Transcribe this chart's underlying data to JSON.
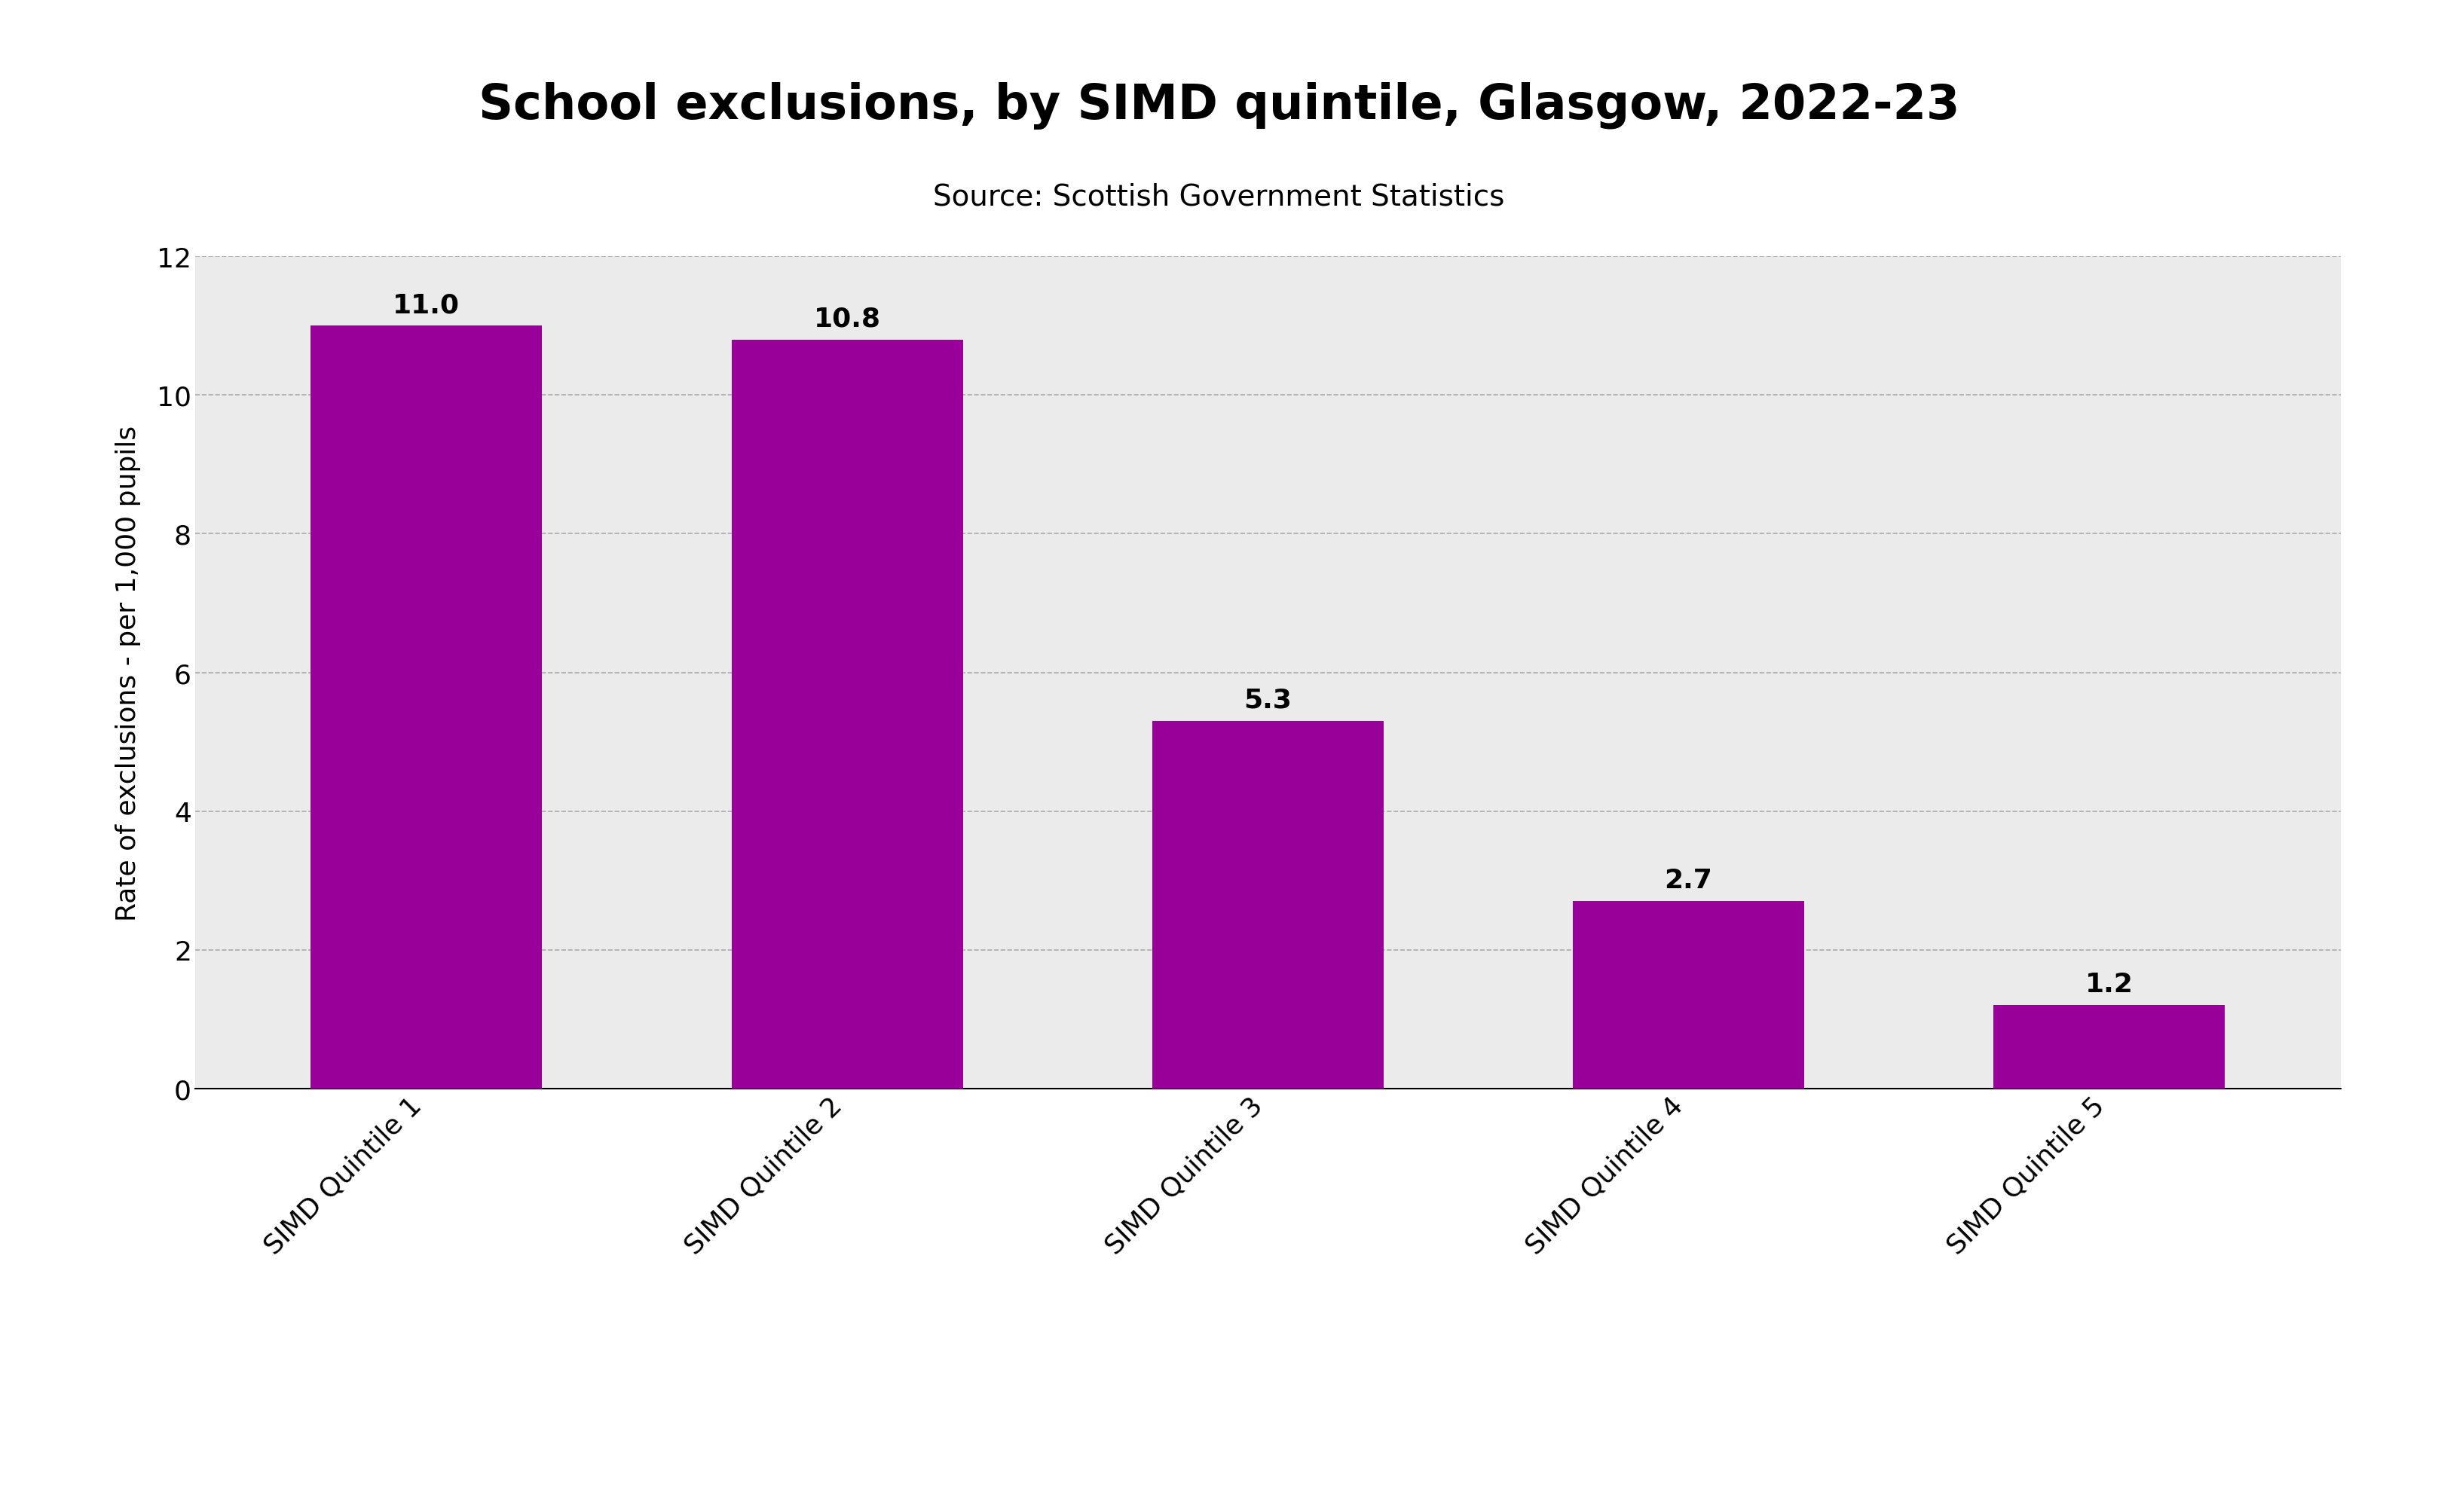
{
  "title": "School exclusions, by SIMD quintile, Glasgow, 2022-23",
  "subtitle": "Source: Scottish Government Statistics",
  "categories": [
    "SIMD Quintile 1",
    "SIMD Quintile 2",
    "SIMD Quintile 3",
    "SIMD Quintile 4",
    "SIMD Quintile 5"
  ],
  "values": [
    11.0,
    10.8,
    5.3,
    2.7,
    1.2
  ],
  "bar_color": "#990099",
  "ylabel": "Rate of exclusions - per 1,000 pupils",
  "ylim": [
    0,
    12
  ],
  "yticks": [
    0,
    2,
    4,
    6,
    8,
    10,
    12
  ],
  "background_color": "#ebebeb",
  "outer_background": "#ffffff",
  "title_fontsize": 46,
  "subtitle_fontsize": 28,
  "ylabel_fontsize": 26,
  "tick_fontsize": 26,
  "label_fontsize": 26,
  "bar_width": 0.55
}
